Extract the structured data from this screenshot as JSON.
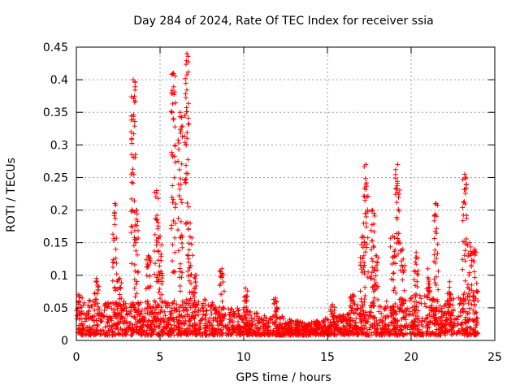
{
  "chart_data": {
    "type": "scatter",
    "title": "Day 284 of 2024, Rate Of TEC Index for receiver ssia",
    "xlabel": "GPS time / hours",
    "ylabel": "ROTI / TECUs",
    "xlim": [
      0,
      25
    ],
    "ylim": [
      0,
      0.45
    ],
    "xticks": [
      "0",
      "5",
      "10",
      "15",
      "20",
      "25"
    ],
    "yticks": [
      "0",
      "0.05",
      "0.1",
      "0.15",
      "0.2",
      "0.25",
      "0.3",
      "0.35",
      "0.4",
      "0.45"
    ],
    "xtick_values": [
      0,
      5,
      10,
      15,
      20,
      25
    ],
    "ytick_values": [
      0,
      0.05,
      0.1,
      0.15,
      0.2,
      0.25,
      0.3,
      0.35,
      0.4,
      0.45
    ],
    "grid": true,
    "marker": "+",
    "color": "#ff0000",
    "baseline_envelope": {
      "hours": [
        0,
        1,
        2,
        3,
        4,
        5,
        6,
        7,
        8,
        9,
        10,
        11,
        12,
        13,
        14,
        15,
        16,
        17,
        18,
        19,
        20,
        21,
        22,
        23,
        24
      ],
      "max_roti": [
        0.07,
        0.06,
        0.06,
        0.06,
        0.06,
        0.06,
        0.06,
        0.07,
        0.06,
        0.05,
        0.05,
        0.04,
        0.04,
        0.03,
        0.03,
        0.035,
        0.04,
        0.06,
        0.06,
        0.06,
        0.07,
        0.07,
        0.06,
        0.07,
        0.08
      ]
    },
    "spikes": [
      {
        "hour": 0.1,
        "peak": 0.07
      },
      {
        "hour": 1.2,
        "peak": 0.095
      },
      {
        "hour": 2.3,
        "peak": 0.21
      },
      {
        "hour": 2.6,
        "peak": 0.095
      },
      {
        "hour": 3.4,
        "peak": 0.4
      },
      {
        "hour": 3.6,
        "peak": 0.2
      },
      {
        "hour": 4.3,
        "peak": 0.13
      },
      {
        "hour": 4.8,
        "peak": 0.23
      },
      {
        "hour": 5.0,
        "peak": 0.16
      },
      {
        "hour": 5.8,
        "peak": 0.41
      },
      {
        "hour": 6.2,
        "peak": 0.35
      },
      {
        "hour": 6.6,
        "peak": 0.44
      },
      {
        "hour": 6.8,
        "peak": 0.18
      },
      {
        "hour": 7.1,
        "peak": 0.1
      },
      {
        "hour": 8.7,
        "peak": 0.11
      },
      {
        "hour": 10.1,
        "peak": 0.08
      },
      {
        "hour": 11.9,
        "peak": 0.065
      },
      {
        "hour": 15.3,
        "peak": 0.055
      },
      {
        "hour": 16.5,
        "peak": 0.07
      },
      {
        "hour": 17.1,
        "peak": 0.16
      },
      {
        "hour": 17.3,
        "peak": 0.27
      },
      {
        "hour": 17.7,
        "peak": 0.2
      },
      {
        "hour": 17.9,
        "peak": 0.13
      },
      {
        "hour": 18.9,
        "peak": 0.16
      },
      {
        "hour": 19.2,
        "peak": 0.27
      },
      {
        "hour": 19.5,
        "peak": 0.14
      },
      {
        "hour": 20.3,
        "peak": 0.135
      },
      {
        "hour": 21.0,
        "peak": 0.11
      },
      {
        "hour": 21.5,
        "peak": 0.21
      },
      {
        "hour": 22.3,
        "peak": 0.09
      },
      {
        "hour": 23.2,
        "peak": 0.255
      },
      {
        "hour": 23.5,
        "peak": 0.15
      },
      {
        "hour": 23.8,
        "peak": 0.14
      }
    ]
  }
}
